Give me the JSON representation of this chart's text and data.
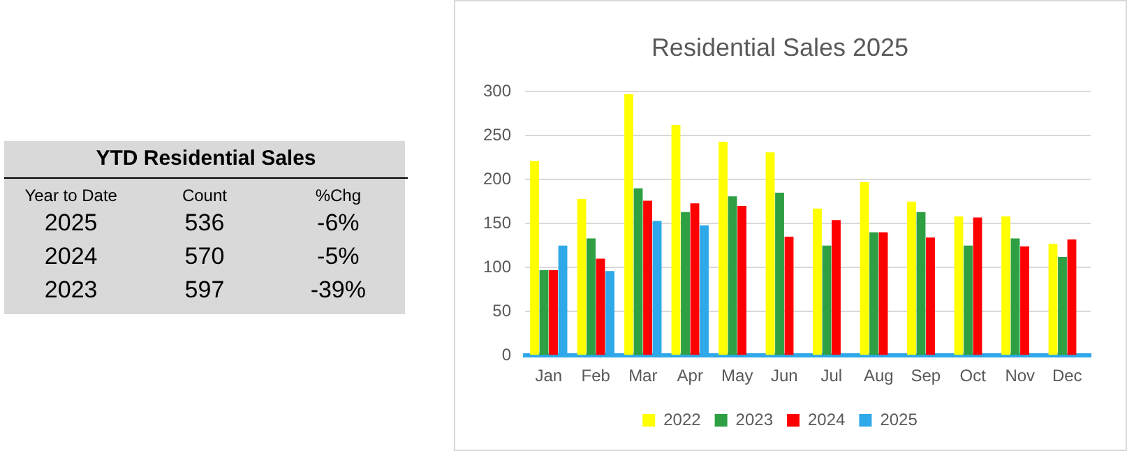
{
  "chart_data": [
    {
      "type": "other",
      "title": "YTD Residential Sales",
      "annotations": [
        "Year to Date",
        "Count",
        "%Chg",
        "2025",
        "536",
        "-6%",
        "2024",
        "570",
        "-5%",
        "2023",
        "597",
        "-39%"
      ]
    },
    {
      "type": "bar",
      "title": "Residential Sales 2025",
      "categories": [
        "Jan",
        "Feb",
        "Mar",
        "Apr",
        "May",
        "Jun",
        "Jul",
        "Aug",
        "Sep",
        "Oct",
        "Nov",
        "Dec"
      ],
      "series": [
        {
          "name": "2022",
          "color": "#ffff00",
          "values": [
            221,
            178,
            297,
            262,
            243,
            231,
            167,
            197,
            175,
            158,
            158,
            127
          ]
        },
        {
          "name": "2023",
          "color": "#2ea043",
          "values": [
            97,
            133,
            190,
            163,
            181,
            185,
            125,
            140,
            163,
            125,
            133,
            112
          ]
        },
        {
          "name": "2024",
          "color": "#ff0000",
          "values": [
            97,
            110,
            176,
            173,
            170,
            135,
            154,
            140,
            134,
            157,
            124,
            132
          ]
        },
        {
          "name": "2025",
          "color": "#2ea8e8",
          "values": [
            125,
            96,
            153,
            148,
            null,
            null,
            null,
            null,
            null,
            null,
            null,
            null
          ]
        }
      ],
      "ylim": [
        0,
        300
      ],
      "yticks": [
        0,
        50,
        100,
        150,
        200,
        250,
        300
      ],
      "grid": "y",
      "legend": "bottom"
    }
  ]
}
